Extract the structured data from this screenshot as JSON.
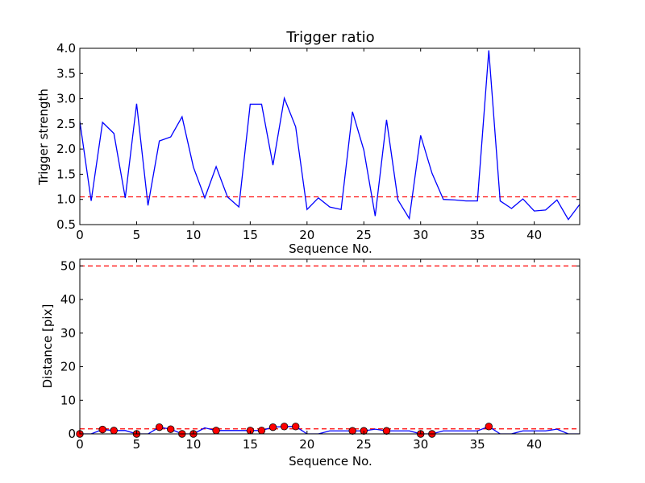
{
  "chart_data": [
    {
      "type": "line",
      "title": "Trigger ratio",
      "xlabel": "Sequence No.",
      "ylabel": "Trigger strength",
      "xlim": [
        0,
        44
      ],
      "ylim": [
        0.5,
        4.0
      ],
      "xticks": [
        0,
        5,
        10,
        15,
        20,
        25,
        30,
        35,
        40
      ],
      "xtick_labels": [
        "0",
        "5",
        "10",
        "15",
        "20",
        "25",
        "30",
        "35",
        "40"
      ],
      "yticks": [
        0.5,
        1.0,
        1.5,
        2.0,
        2.5,
        3.0,
        3.5,
        4.0
      ],
      "ytick_labels": [
        "0.5",
        "1.0",
        "1.5",
        "2.0",
        "2.5",
        "3.0",
        "3.5",
        "4.0"
      ],
      "grid": false,
      "series": [
        {
          "color": "#0000ff",
          "style": "solid",
          "x": [
            0,
            1,
            2,
            3,
            4,
            5,
            6,
            7,
            8,
            9,
            10,
            11,
            12,
            13,
            14,
            15,
            16,
            17,
            18,
            19,
            20,
            21,
            22,
            23,
            24,
            25,
            26,
            27,
            28,
            29,
            30,
            31,
            32,
            33,
            34,
            35,
            36,
            37,
            38,
            39,
            40,
            41,
            42,
            43,
            44
          ],
          "y": [
            2.55,
            0.97,
            2.53,
            2.31,
            1.03,
            2.9,
            0.88,
            2.16,
            2.24,
            2.64,
            1.64,
            1.03,
            1.65,
            1.05,
            0.85,
            2.89,
            2.89,
            1.68,
            3.01,
            2.44,
            0.8,
            1.03,
            0.85,
            0.8,
            2.74,
            1.98,
            0.67,
            2.58,
            0.99,
            0.62,
            2.27,
            1.52,
            1.0,
            0.99,
            0.97,
            0.97,
            3.96,
            0.97,
            0.82,
            1.01,
            0.77,
            0.79,
            0.99,
            0.6,
            0.9
          ]
        }
      ],
      "reference_lines": [
        {
          "y": 1.05,
          "color": "#ff0000",
          "style": "dashed"
        }
      ]
    },
    {
      "type": "line",
      "title": "",
      "xlabel": "Sequence No.",
      "ylabel": "Distance [pix]",
      "xlim": [
        0,
        44
      ],
      "ylim": [
        0,
        52
      ],
      "xticks": [
        0,
        5,
        10,
        15,
        20,
        25,
        30,
        35,
        40
      ],
      "xtick_labels": [
        "0",
        "5",
        "10",
        "15",
        "20",
        "25",
        "30",
        "35",
        "40"
      ],
      "yticks": [
        0,
        10,
        20,
        30,
        40,
        50
      ],
      "ytick_labels": [
        "0",
        "10",
        "20",
        "30",
        "40",
        "50"
      ],
      "grid": false,
      "series": [
        {
          "color": "#0000ff",
          "style": "solid",
          "x": [
            0,
            1,
            2,
            3,
            4,
            5,
            6,
            7,
            8,
            9,
            10,
            11,
            12,
            13,
            14,
            15,
            16,
            17,
            18,
            19,
            20,
            21,
            22,
            23,
            24,
            25,
            26,
            27,
            28,
            29,
            30,
            31,
            32,
            33,
            34,
            35,
            36,
            37,
            38,
            39,
            40,
            41,
            42,
            43,
            44
          ],
          "y": [
            0,
            0,
            1.3,
            1.0,
            1.0,
            0,
            0,
            2.0,
            1.4,
            0,
            0,
            1.8,
            1.0,
            1.0,
            1.0,
            1.0,
            1.0,
            2.0,
            2.2,
            2.2,
            0,
            0,
            0.9,
            0.9,
            0.9,
            0.9,
            1.4,
            0.9,
            0.9,
            0.9,
            0,
            0,
            0.9,
            0.9,
            0.9,
            0.9,
            2.2,
            0,
            0,
            0.9,
            0.9,
            0.9,
            1.4,
            0,
            0
          ]
        }
      ],
      "markers": {
        "color": "#ff0000",
        "edge_color": "#000000",
        "x": [
          0,
          2,
          3,
          5,
          7,
          8,
          9,
          10,
          12,
          15,
          16,
          17,
          18,
          19,
          24,
          25,
          27,
          30,
          31,
          36
        ],
        "y": [
          0,
          1.3,
          1.0,
          0,
          2.0,
          1.4,
          0,
          0,
          1.0,
          1.0,
          1.0,
          2.0,
          2.2,
          2.2,
          0.9,
          0.9,
          0.9,
          0,
          0,
          2.2
        ]
      },
      "reference_lines": [
        {
          "y": 50,
          "color": "#ff0000",
          "style": "dashed"
        },
        {
          "y": 1.5,
          "color": "#ff0000",
          "style": "dashed"
        }
      ]
    }
  ]
}
